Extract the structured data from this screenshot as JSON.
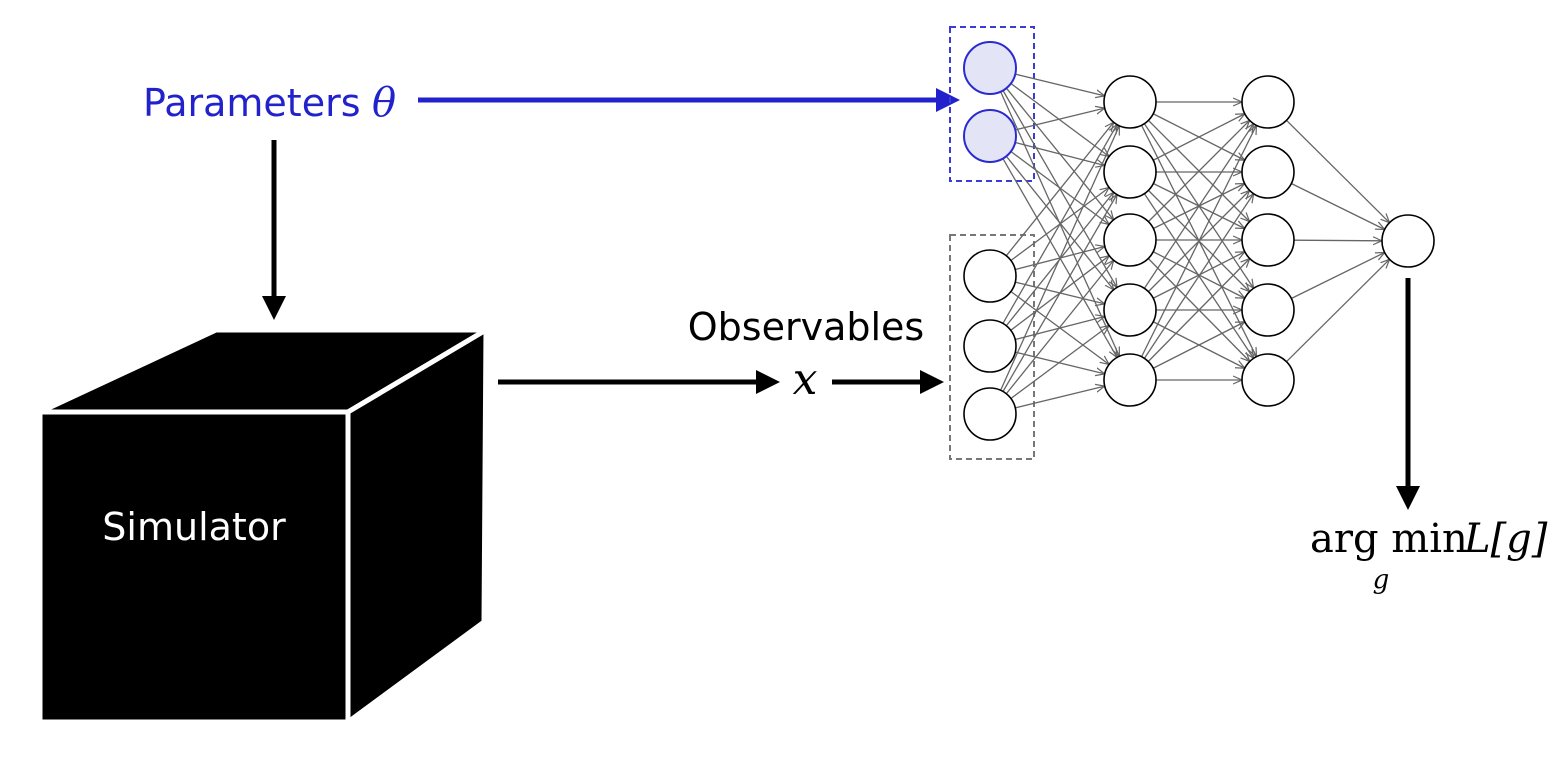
{
  "labels": {
    "parameters": "Parameters",
    "theta": "θ",
    "simulator": "Simulator",
    "observables": "Observables",
    "x": "x",
    "argmin": "arg min",
    "argmin_sub": "g",
    "loss": "L[g]"
  },
  "network": {
    "layers": [
      {
        "name": "input-params",
        "nodes": 2
      },
      {
        "name": "input-observables",
        "nodes": 3
      },
      {
        "name": "hidden-1",
        "nodes": 5
      },
      {
        "name": "hidden-2",
        "nodes": 5
      },
      {
        "name": "output",
        "nodes": 1
      }
    ]
  },
  "colors": {
    "parameters": "#2222cc",
    "param_node_fill": "#e3e5f7",
    "param_node_stroke": "#2a2ad0",
    "black": "#000000",
    "edge": "#666666",
    "observables_box": "#777777"
  }
}
